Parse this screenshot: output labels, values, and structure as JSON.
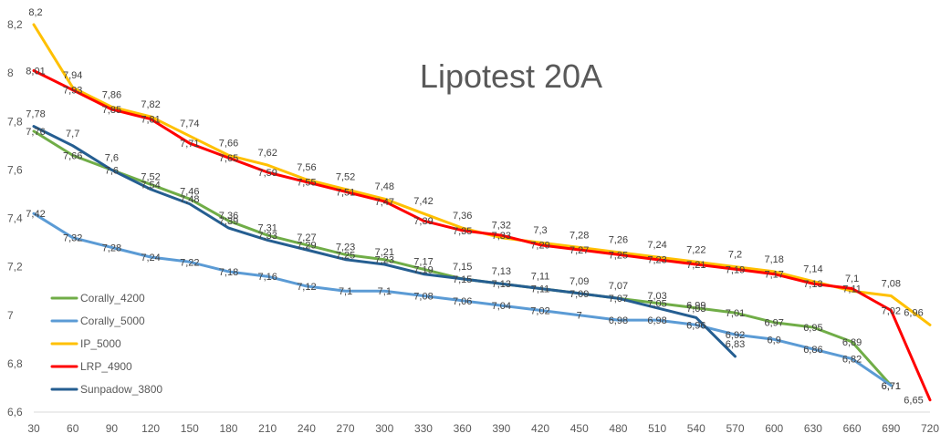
{
  "chart_data": {
    "type": "line",
    "title": "Lipotest 20A",
    "x": [
      30,
      60,
      90,
      120,
      150,
      180,
      210,
      240,
      270,
      300,
      330,
      360,
      390,
      420,
      450,
      480,
      510,
      540,
      570,
      600,
      630,
      660,
      690,
      720
    ],
    "x_tick_labels": [
      "30",
      "60",
      "90",
      "120",
      "150",
      "180",
      "210",
      "240",
      "270",
      "300",
      "330",
      "360",
      "390",
      "420",
      "450",
      "480",
      "510",
      "540",
      "570",
      "600",
      "630",
      "660",
      "690",
      "720"
    ],
    "ylim": [
      6.6,
      8.2
    ],
    "y_ticks": [
      6.6,
      6.8,
      7.0,
      7.2,
      7.4,
      7.6,
      7.8,
      8.0,
      8.2
    ],
    "y_tick_labels": [
      "6,6",
      "6,8",
      "7",
      "7,2",
      "7,4",
      "7,6",
      "7,8",
      "8",
      "8,2"
    ],
    "grid": false,
    "legend_position": "left",
    "colors": {
      "Corally_4200": "#70ad47",
      "Corally_5000": "#5b9bd5",
      "IP_5000": "#ffc000",
      "LRP_4900": "#ff0000",
      "Sunpadow_3800": "#255e91"
    },
    "series": [
      {
        "name": "Corally_4200",
        "color": "#70ad47",
        "values": [
          7.76,
          7.66,
          7.6,
          7.54,
          7.48,
          7.39,
          7.33,
          7.29,
          7.25,
          7.23,
          7.19,
          7.15,
          7.13,
          7.11,
          7.09,
          7.07,
          7.05,
          7.03,
          7.01,
          6.97,
          6.95,
          6.89,
          6.71,
          null
        ],
        "labels": [
          "7,76",
          "7,66",
          "7,6",
          "7,54",
          "7,48",
          "7,39",
          "7,33",
          "7,29",
          "7,25",
          "7,23",
          "7,19",
          "7,15",
          "7,13",
          "7,11",
          "7,09",
          "7,07",
          "7,05",
          "7,03",
          "7,01",
          "6,97",
          "6,95",
          "6,89",
          "6,71",
          ""
        ]
      },
      {
        "name": "Corally_5000",
        "color": "#5b9bd5",
        "values": [
          7.42,
          7.32,
          7.28,
          7.24,
          7.22,
          7.18,
          7.16,
          7.12,
          7.1,
          7.1,
          7.08,
          7.06,
          7.04,
          7.02,
          7.0,
          6.98,
          6.98,
          6.96,
          6.92,
          6.9,
          6.86,
          6.82,
          6.71,
          null
        ],
        "labels": [
          "7,42",
          "7,32",
          "7,28",
          "7,24",
          "7,22",
          "7,18",
          "7,16",
          "7,12",
          "7,1",
          "7,1",
          "7,08",
          "7,06",
          "7,04",
          "7,02",
          "7",
          "6,98",
          "6,98",
          "6,96",
          "6,92",
          "6,9",
          "6,86",
          "6,82",
          "6,71",
          ""
        ]
      },
      {
        "name": "IP_5000",
        "color": "#ffc000",
        "values": [
          8.2,
          7.94,
          7.86,
          7.82,
          7.74,
          7.66,
          7.62,
          7.56,
          7.52,
          7.48,
          7.42,
          7.36,
          7.32,
          7.3,
          7.28,
          7.26,
          7.24,
          7.22,
          7.2,
          7.18,
          7.14,
          7.1,
          7.08,
          6.96
        ],
        "labels": [
          "8,2",
          "7,94",
          "7,86",
          "7,82",
          "7,74",
          "7,66",
          "7,62",
          "7,56",
          "7,52",
          "7,48",
          "7,42",
          "7,36",
          "7,32",
          "7,3",
          "7,28",
          "7,26",
          "7,24",
          "7,22",
          "7,2",
          "7,18",
          "7,14",
          "7,1",
          "7,08",
          "6,96"
        ]
      },
      {
        "name": "LRP_4900",
        "color": "#ff0000",
        "values": [
          8.01,
          7.93,
          7.85,
          7.81,
          7.71,
          7.65,
          7.59,
          7.55,
          7.51,
          7.47,
          7.39,
          7.35,
          7.33,
          7.29,
          7.27,
          7.25,
          7.23,
          7.21,
          7.19,
          7.17,
          7.13,
          7.11,
          7.02,
          6.65
        ],
        "labels": [
          "8,01",
          "7,93",
          "7,85",
          "7,81",
          "7,71",
          "7,65",
          "7,59",
          "7,55",
          "7,51",
          "7,47",
          "7,39",
          "7,35",
          "7,33",
          "7,29",
          "7,27",
          "7,25",
          "7,23",
          "7,21",
          "7,19",
          "7,17",
          "7,13",
          "7,11",
          "7,02",
          "6,65"
        ]
      },
      {
        "name": "Sunpadow_3800",
        "color": "#255e91",
        "values": [
          7.78,
          7.7,
          7.6,
          7.52,
          7.46,
          7.36,
          7.31,
          7.27,
          7.23,
          7.21,
          7.17,
          7.15,
          7.13,
          7.11,
          7.09,
          7.07,
          7.03,
          6.99,
          6.83,
          null,
          null,
          null,
          null,
          null
        ],
        "labels": [
          "7,78",
          "7,7",
          "7,6",
          "7,52",
          "7,46",
          "7,36",
          "7,31",
          "7,27",
          "7,23",
          "7,21",
          "7,17",
          "7,15",
          "7,13",
          "7,11",
          "7,09",
          "7,07",
          "7,03",
          "6,99",
          "6,83",
          "",
          "",
          "",
          "",
          ""
        ]
      }
    ]
  }
}
